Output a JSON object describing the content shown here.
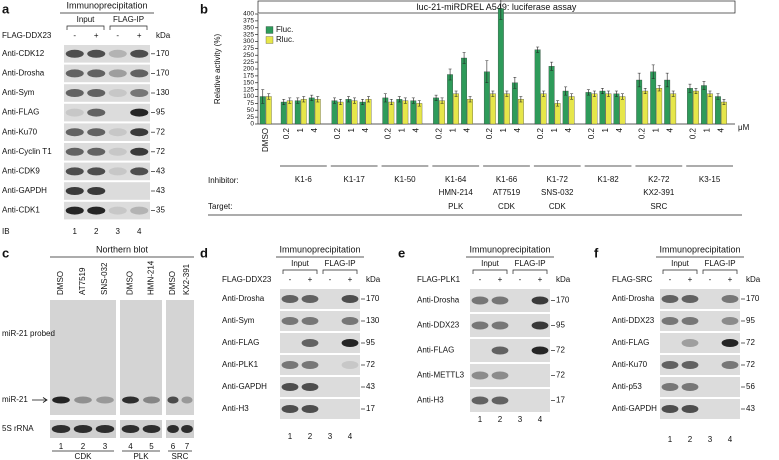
{
  "panels": {
    "a": {
      "label": "a",
      "title": "Immunoprecipitation",
      "groups": [
        "Input",
        "FLAG-IP"
      ],
      "condition": "FLAG-DDX23",
      "signs": [
        "-",
        "+",
        "-",
        "+"
      ],
      "unit": "kDa",
      "rows": [
        {
          "name": "Anti-CDK12",
          "kda": 170
        },
        {
          "name": "Anti-Drosha",
          "kda": 170
        },
        {
          "name": "Anti-Sym",
          "kda": 130
        },
        {
          "name": "Anti-FLAG",
          "kda": 95
        },
        {
          "name": "Anti-Ku70",
          "kda": 72
        },
        {
          "name": "Anti-Cyclin T1",
          "kda": 72
        },
        {
          "name": "Anti-CDK9",
          "kda": 43
        },
        {
          "name": "Anti-GAPDH",
          "kda": 43
        },
        {
          "name": "Anti-CDK1",
          "kda": 35
        }
      ],
      "lanes": [
        1,
        2,
        3,
        4
      ],
      "footer": "IB"
    },
    "c": {
      "label": "c",
      "title": "Northern blot",
      "lanes": [
        "DMSO",
        "AT7519",
        "SNS-032",
        "DMSO",
        "HMN-214",
        "DMSO",
        "KX2-391"
      ],
      "rows": [
        "miR-21 probed",
        "miR-21",
        "5S rRNA"
      ],
      "numbers": [
        1,
        2,
        3,
        4,
        5,
        6,
        7
      ],
      "groups": [
        "CDK",
        "PLK",
        "SRC"
      ]
    },
    "d": {
      "label": "d",
      "title": "Immunoprecipitation",
      "groups": [
        "Input",
        "FLAG-IP"
      ],
      "condition": "FLAG-DDX23",
      "signs": [
        "-",
        "+",
        "-",
        "+"
      ],
      "unit": "kDa",
      "rows": [
        {
          "name": "Anti-Drosha",
          "kda": 170
        },
        {
          "name": "Anti-Sym",
          "kda": 130
        },
        {
          "name": "Anti-FLAG",
          "kda": 95
        },
        {
          "name": "Anti-PLK1",
          "kda": 72
        },
        {
          "name": "Anti-GAPDH",
          "kda": 43
        },
        {
          "name": "Anti-H3",
          "kda": 17
        }
      ],
      "lanes": [
        1,
        2,
        3,
        4
      ]
    },
    "e": {
      "label": "e",
      "title": "Immunoprecipitation",
      "groups": [
        "Input",
        "FLAG-IP"
      ],
      "condition": "FLAG-PLK1",
      "signs": [
        "-",
        "+",
        "-",
        "+"
      ],
      "unit": "kDa",
      "rows": [
        {
          "name": "Anti-Drosha",
          "kda": 170
        },
        {
          "name": "Anti-DDX23",
          "kda": 95
        },
        {
          "name": "Anti-FLAG",
          "kda": 72
        },
        {
          "name": "Anti-METTL3",
          "kda": 72
        },
        {
          "name": "Anti-H3",
          "kda": 17
        }
      ],
      "lanes": [
        1,
        2,
        3,
        4
      ]
    },
    "f": {
      "label": "f",
      "title": "Immunoprecipitation",
      "groups": [
        "Input",
        "FLAG-IP"
      ],
      "condition": "FLAG-SRC",
      "signs": [
        "-",
        "+",
        "-",
        "+"
      ],
      "unit": "kDa",
      "rows": [
        {
          "name": "Anti-Drosha",
          "kda": 170
        },
        {
          "name": "Anti-DDX23",
          "kda": 95
        },
        {
          "name": "Anti-FLAG",
          "kda": 72
        },
        {
          "name": "Anti-Ku70",
          "kda": 72
        },
        {
          "name": "Anti-p53",
          "kda": 56
        },
        {
          "name": "Anti-GAPDH",
          "kda": 43
        }
      ],
      "lanes": [
        1,
        2,
        3,
        4
      ]
    }
  },
  "chart_data": {
    "type": "bar",
    "label": "b",
    "title": "luc-21-miRDREL A549: luciferase assay",
    "ylabel": "Relative activity (%)",
    "unit": "μM",
    "inhibitor_label": "Inhibitor:",
    "target_label": "Target:",
    "categories": [
      "DMSO",
      "0.2",
      "1",
      "4",
      "0.2",
      "1",
      "4",
      "0.2",
      "1",
      "4",
      "0.2",
      "1",
      "4",
      "0.2",
      "1",
      "4",
      "0.2",
      "1",
      "4",
      "0.2",
      "1",
      "4",
      "0.2",
      "1",
      "4",
      "0.2",
      "1",
      "4"
    ],
    "groups": [
      {
        "name": "K1-6"
      },
      {
        "name": "K1-17"
      },
      {
        "name": "K1-50"
      },
      {
        "name": "K1-64",
        "drug": "HMN-214",
        "target": "PLK"
      },
      {
        "name": "K1-66",
        "drug": "AT7519",
        "target": "CDK"
      },
      {
        "name": "K1-72",
        "drug": "SNS-032",
        "target": "CDK"
      },
      {
        "name": "K1-82"
      },
      {
        "name": "K2-72",
        "drug": "KX2-391",
        "target": "SRC"
      },
      {
        "name": "K3-15"
      }
    ],
    "series": [
      {
        "name": "Fluc.",
        "color": "#2e9b5a",
        "values": [
          100,
          80,
          85,
          95,
          85,
          90,
          80,
          95,
          90,
          85,
          95,
          180,
          240,
          190,
          420,
          150,
          270,
          210,
          120,
          115,
          120,
          110,
          160,
          190,
          160,
          130,
          140,
          100
        ],
        "errors": [
          25,
          10,
          10,
          10,
          10,
          10,
          10,
          15,
          10,
          10,
          10,
          20,
          20,
          40,
          40,
          20,
          10,
          15,
          15,
          10,
          10,
          10,
          25,
          25,
          25,
          15,
          15,
          10
        ]
      },
      {
        "name": "Rluc.",
        "color": "#e6e64a",
        "values": [
          100,
          85,
          90,
          90,
          80,
          85,
          90,
          80,
          85,
          75,
          85,
          110,
          90,
          110,
          110,
          90,
          110,
          75,
          100,
          110,
          110,
          100,
          120,
          130,
          110,
          120,
          110,
          80
        ],
        "errors": [
          10,
          10,
          10,
          10,
          10,
          10,
          10,
          10,
          10,
          10,
          10,
          10,
          10,
          10,
          10,
          10,
          10,
          10,
          10,
          10,
          10,
          10,
          10,
          10,
          10,
          10,
          10,
          10
        ]
      }
    ],
    "ylim": [
      0,
      400
    ],
    "yticks": [
      0,
      25,
      50,
      75,
      100,
      125,
      150,
      175,
      200,
      225,
      250,
      275,
      300,
      325,
      350,
      375,
      400
    ],
    "legend": "top-left"
  }
}
